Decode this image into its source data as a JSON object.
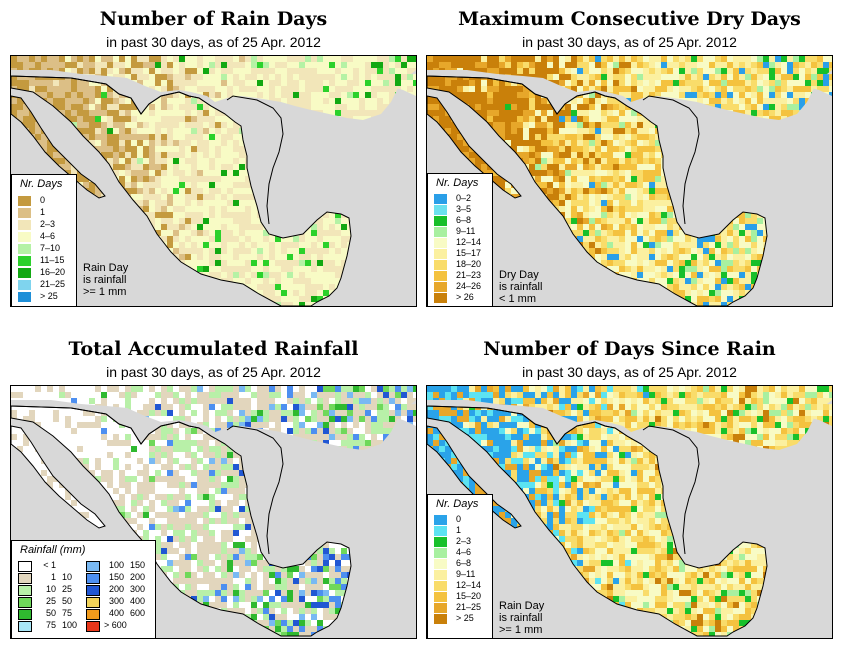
{
  "colors": {
    "land_default": "#e7dcc4",
    "ocean": "#d8d8d8"
  },
  "panels": [
    {
      "id": "rain_days",
      "title": "Number of Rain Days",
      "subtitle": "in past 30 days, as of  25 Apr. 2012",
      "legend_title": "Nr. Days",
      "note": "Rain Day\nis rainfall\n>= 1 mm",
      "legend": [
        {
          "label": "0",
          "color": "#c49a3f"
        },
        {
          "label": "1",
          "color": "#dcbf86"
        },
        {
          "label": "2–3",
          "color": "#f2e6b9"
        },
        {
          "label": "4–6",
          "color": "#f8fbc5"
        },
        {
          "label": "7–10",
          "color": "#b5f2a5"
        },
        {
          "label": "11–15",
          "color": "#2bd12b"
        },
        {
          "label": "16–20",
          "color": "#12a812"
        },
        {
          "label": "21–25",
          "color": "#7fd4ee"
        },
        {
          "label": "> 25",
          "color": "#1e8fd8"
        }
      ],
      "scheme": "rain"
    },
    {
      "id": "dry_days",
      "title": "Maximum Consecutive Dry Days",
      "subtitle": "in past 30 days, as of  25 Apr. 2012",
      "legend_title": "Nr. Days",
      "note": "Dry Day\nis rainfall\n< 1 mm",
      "legend": [
        {
          "label": "0–2",
          "color": "#2a9fe8"
        },
        {
          "label": "3–5",
          "color": "#6be1ee"
        },
        {
          "label": "6–8",
          "color": "#17bf2a"
        },
        {
          "label": "9–11",
          "color": "#a8f0a0"
        },
        {
          "label": "12–14",
          "color": "#f8fbc5"
        },
        {
          "label": "15–17",
          "color": "#fbf0a0"
        },
        {
          "label": "18–20",
          "color": "#f9dc6a"
        },
        {
          "label": "21–23",
          "color": "#f4c23f"
        },
        {
          "label": "24–26",
          "color": "#e7a72a"
        },
        {
          "label": "> 26",
          "color": "#c9800a"
        }
      ],
      "scheme": "dry"
    },
    {
      "id": "accum_rain",
      "title": "Total Accumulated Rainfall",
      "subtitle": "in past 30 days, as of  25 Apr. 2012",
      "legend_title": "Rainfall (mm)",
      "legend_col1": [
        {
          "lo": "< 1",
          "hi": "",
          "color": "#ffffff"
        },
        {
          "lo": "1",
          "hi": "10",
          "color": "#e2d6bd"
        },
        {
          "lo": "10",
          "hi": "25",
          "color": "#b8f0a8"
        },
        {
          "lo": "25",
          "hi": "50",
          "color": "#6fd85a"
        },
        {
          "lo": "50",
          "hi": "75",
          "color": "#2fb92f"
        },
        {
          "lo": "75",
          "hi": "100",
          "color": "#a9e6f6"
        }
      ],
      "legend_col2": [
        {
          "lo": "100",
          "hi": "150",
          "color": "#79b9f3"
        },
        {
          "lo": "150",
          "hi": "200",
          "color": "#4d8ff0"
        },
        {
          "lo": "200",
          "hi": "300",
          "color": "#2157d3"
        },
        {
          "lo": "300",
          "hi": "400",
          "color": "#f2d35a"
        },
        {
          "lo": "400",
          "hi": "600",
          "color": "#f29b1c"
        },
        {
          "lo": "> 600",
          "hi": "",
          "color": "#e8371a"
        }
      ],
      "scheme": "accum"
    },
    {
      "id": "since_rain",
      "title": "Number of Days Since Rain",
      "subtitle": "in past 30 days, as of  25 Apr. 2012",
      "legend_title": "Nr. Days",
      "note": "Rain Day\nis rainfall\n>= 1 mm",
      "legend": [
        {
          "label": "0",
          "color": "#2aa3e9"
        },
        {
          "label": "1",
          "color": "#5ce3f2"
        },
        {
          "label": "2–3",
          "color": "#17c12b"
        },
        {
          "label": "4–6",
          "color": "#a8f0a0"
        },
        {
          "label": "6–8",
          "color": "#f8fbc5"
        },
        {
          "label": "9–11",
          "color": "#fbf0a0"
        },
        {
          "label": "12–14",
          "color": "#f9dc6a"
        },
        {
          "label": "15–20",
          "color": "#f4c23f"
        },
        {
          "label": "21–25",
          "color": "#e7a72a"
        },
        {
          "label": "> 25",
          "color": "#c9800a"
        }
      ],
      "scheme": "since"
    }
  ]
}
